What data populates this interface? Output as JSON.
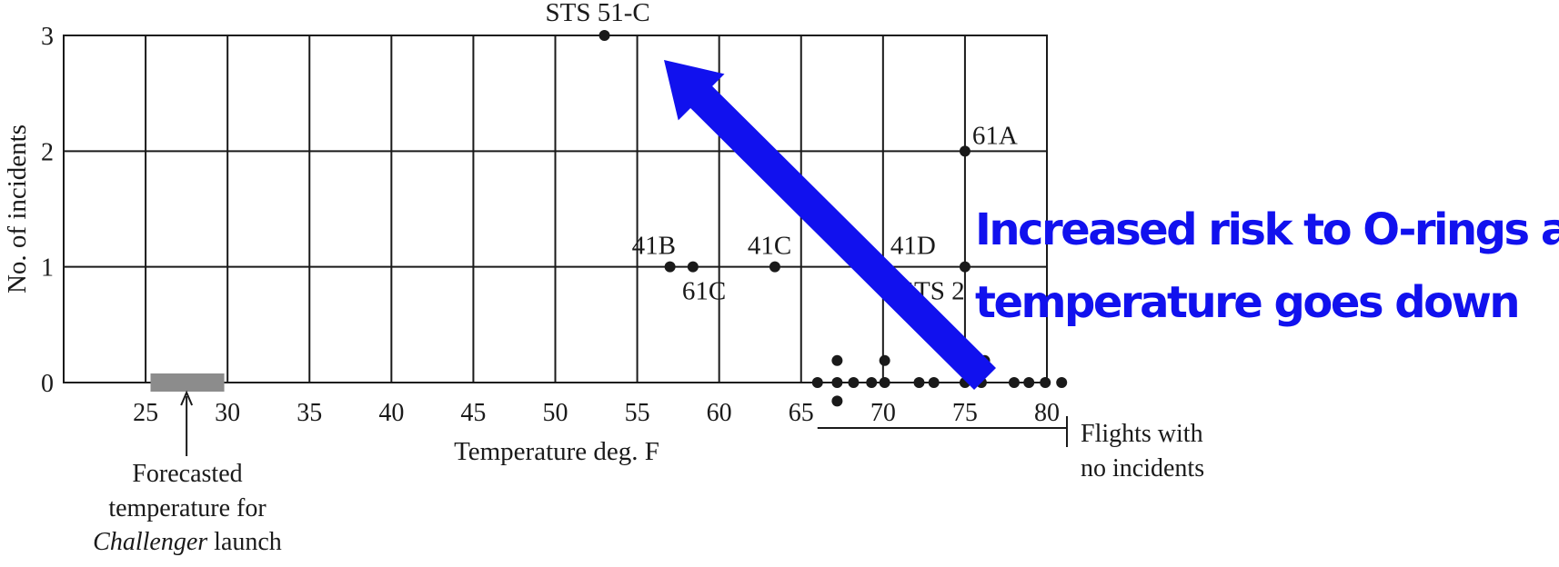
{
  "chart_data": {
    "type": "scatter",
    "xlabel": "Temperature deg. F",
    "ylabel": "No. of incidents",
    "xlim": [
      20,
      80
    ],
    "ylim": [
      0,
      3
    ],
    "xticks": [
      25,
      30,
      35,
      40,
      45,
      50,
      55,
      60,
      65,
      70,
      75,
      80
    ],
    "yticks": [
      0,
      1,
      2,
      3
    ],
    "grid": true,
    "incident_flights": [
      {
        "label": "STS 51-C",
        "x": 53,
        "y": 3
      },
      {
        "label": "61A",
        "x": 75,
        "y": 2
      },
      {
        "label": "41B",
        "x": 57,
        "y": 1
      },
      {
        "label": "61C",
        "x": 58.4,
        "y": 1
      },
      {
        "label": "41C",
        "x": 63.4,
        "y": 1
      },
      {
        "label": "41D",
        "x": 70,
        "y": 1
      },
      {
        "label": "STS 2",
        "x": 75,
        "y": 1
      }
    ],
    "no_incident_flights": [
      {
        "x": 66,
        "y": 0
      },
      {
        "x": 67.2,
        "y": 0
      },
      {
        "x": 68.2,
        "y": 0
      },
      {
        "x": 69.3,
        "y": 0
      },
      {
        "x": 70.1,
        "y": 0
      },
      {
        "x": 72.2,
        "y": 0
      },
      {
        "x": 73.1,
        "y": 0
      },
      {
        "x": 75,
        "y": 0
      },
      {
        "x": 76,
        "y": 0
      },
      {
        "x": 78,
        "y": 0
      },
      {
        "x": 78.9,
        "y": 0
      },
      {
        "x": 79.9,
        "y": 0
      },
      {
        "x": 80.9,
        "y": 0
      }
    ],
    "stacked_markers": [
      {
        "x": 67.2,
        "y": 0.19
      },
      {
        "x": 67.2,
        "y": -0.16
      },
      {
        "x": 70.1,
        "y": 0.19
      },
      {
        "x": 76.2,
        "y": 0.19
      }
    ],
    "forecast_range": [
      25.3,
      29.8
    ],
    "annotations": {
      "forecast_line1": "Forecasted",
      "forecast_line2": "temperature for",
      "forecast_italic": "Challenger",
      "forecast_suffix": " launch",
      "no_incidents_line1": "Flights with",
      "no_incidents_line2": "no incidents"
    },
    "colors": {
      "ink": "#1a1a1a",
      "forecast_bar": "#8c8c8c",
      "arrow": "#1111ee"
    }
  },
  "overlay": {
    "line1": "Increased risk to O-rings as",
    "line2": "temperature goes down"
  }
}
